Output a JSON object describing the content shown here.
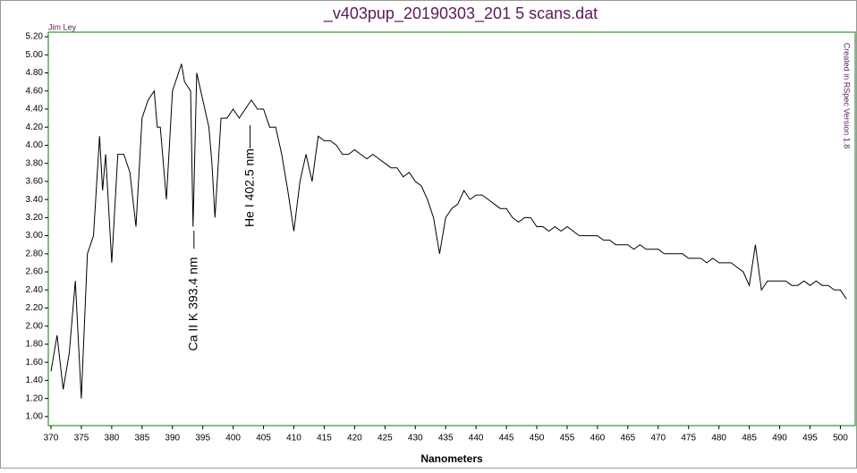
{
  "chart_data": {
    "type": "line",
    "title": "_v403pup_20190303_201 5 scans.dat",
    "x_label": "Nanometers",
    "author": "Jim Ley",
    "credit": "Created in RSpec Version 1.8",
    "annotations": [
      {
        "text": "Ca II K 393.4 nm",
        "x": 393.4
      },
      {
        "text": "He I 402.5 nm",
        "x": 402.5
      }
    ],
    "color": "#000000",
    "frame_color": "#008000",
    "x": [
      370,
      371,
      372,
      373,
      374,
      375,
      375.5,
      376,
      377,
      378,
      378.5,
      379,
      380,
      381,
      382,
      383,
      384,
      385,
      386,
      387,
      387.5,
      388,
      389,
      390,
      391,
      391.5,
      392,
      393,
      393.4,
      394,
      395,
      396,
      396.5,
      397,
      398,
      399,
      400,
      401,
      402,
      403,
      404,
      405,
      406,
      407,
      408,
      409,
      410,
      411,
      412,
      413,
      414,
      415,
      416,
      417,
      418,
      419,
      420,
      421,
      422,
      423,
      424,
      425,
      426,
      427,
      428,
      429,
      430,
      431,
      432,
      433,
      434,
      435,
      436,
      437,
      438,
      439,
      440,
      441,
      442,
      443,
      444,
      445,
      446,
      447,
      448,
      449,
      450,
      451,
      452,
      453,
      454,
      455,
      456,
      457,
      458,
      459,
      460,
      461,
      462,
      463,
      464,
      465,
      466,
      467,
      468,
      469,
      470,
      471,
      472,
      473,
      474,
      475,
      476,
      477,
      478,
      479,
      480,
      481,
      482,
      483,
      484,
      485,
      486,
      487,
      488,
      489,
      490,
      491,
      492,
      493,
      494,
      495,
      496,
      497,
      498,
      499,
      500,
      501
    ],
    "values": [
      1.5,
      1.9,
      1.3,
      1.7,
      2.5,
      1.2,
      2.0,
      2.8,
      3.0,
      4.1,
      3.5,
      3.9,
      2.7,
      3.9,
      3.9,
      3.7,
      3.1,
      4.3,
      4.5,
      4.6,
      4.2,
      4.2,
      3.4,
      4.6,
      4.8,
      4.9,
      4.7,
      4.6,
      3.1,
      4.8,
      4.5,
      4.2,
      3.8,
      3.2,
      4.3,
      4.3,
      4.4,
      4.3,
      4.4,
      4.5,
      4.4,
      4.4,
      4.2,
      4.2,
      3.9,
      3.5,
      3.05,
      3.6,
      3.9,
      3.6,
      4.1,
      4.05,
      4.05,
      4.0,
      3.9,
      3.9,
      3.95,
      3.9,
      3.85,
      3.9,
      3.85,
      3.8,
      3.75,
      3.75,
      3.65,
      3.7,
      3.6,
      3.55,
      3.4,
      3.2,
      2.8,
      3.2,
      3.3,
      3.35,
      3.5,
      3.4,
      3.45,
      3.45,
      3.4,
      3.35,
      3.3,
      3.3,
      3.2,
      3.15,
      3.2,
      3.2,
      3.1,
      3.1,
      3.05,
      3.1,
      3.05,
      3.1,
      3.05,
      3.0,
      3.0,
      3.0,
      3.0,
      2.95,
      2.95,
      2.9,
      2.9,
      2.9,
      2.85,
      2.9,
      2.85,
      2.85,
      2.85,
      2.8,
      2.8,
      2.8,
      2.8,
      2.75,
      2.75,
      2.75,
      2.7,
      2.75,
      2.7,
      2.7,
      2.7,
      2.65,
      2.6,
      2.45,
      2.9,
      2.4,
      2.5,
      2.5,
      2.5,
      2.5,
      2.45,
      2.45,
      2.5,
      2.45,
      2.5,
      2.45,
      2.45,
      2.4,
      2.4,
      2.3
    ],
    "xlim": [
      370,
      502
    ],
    "ylim": [
      0.9,
      5.25
    ],
    "xticks": [
      370,
      375,
      380,
      385,
      390,
      395,
      400,
      405,
      410,
      415,
      420,
      425,
      430,
      435,
      440,
      445,
      450,
      455,
      460,
      465,
      470,
      475,
      480,
      485,
      490,
      495,
      500
    ],
    "yticks": [
      {
        "value": 1.0,
        "label": "1.00"
      },
      {
        "value": 1.2,
        "label": "1.20"
      },
      {
        "value": 1.4,
        "label": "1.40"
      },
      {
        "value": 1.6,
        "label": "1.60"
      },
      {
        "value": 1.8,
        "label": "1.80"
      },
      {
        "value": 2.0,
        "label": "2.00"
      },
      {
        "value": 2.2,
        "label": "2.20"
      },
      {
        "value": 2.4,
        "label": "2.40"
      },
      {
        "value": 2.6,
        "label": "2.60"
      },
      {
        "value": 2.8,
        "label": "2.80"
      },
      {
        "value": 3.0,
        "label": "3.00"
      },
      {
        "value": 3.2,
        "label": "3.20"
      },
      {
        "value": 3.4,
        "label": "3.40"
      },
      {
        "value": 3.6,
        "label": "3.60"
      },
      {
        "value": 3.8,
        "label": "3.80"
      },
      {
        "value": 4.0,
        "label": "4.00"
      },
      {
        "value": 4.2,
        "label": "4.20"
      },
      {
        "value": 4.4,
        "label": "4.40"
      },
      {
        "value": 4.6,
        "label": "4.60"
      },
      {
        "value": 4.8,
        "label": "4.80"
      },
      {
        "value": 5.0,
        "label": "5.00"
      },
      {
        "value": 5.2,
        "label": "5.20"
      }
    ],
    "grid": false
  }
}
